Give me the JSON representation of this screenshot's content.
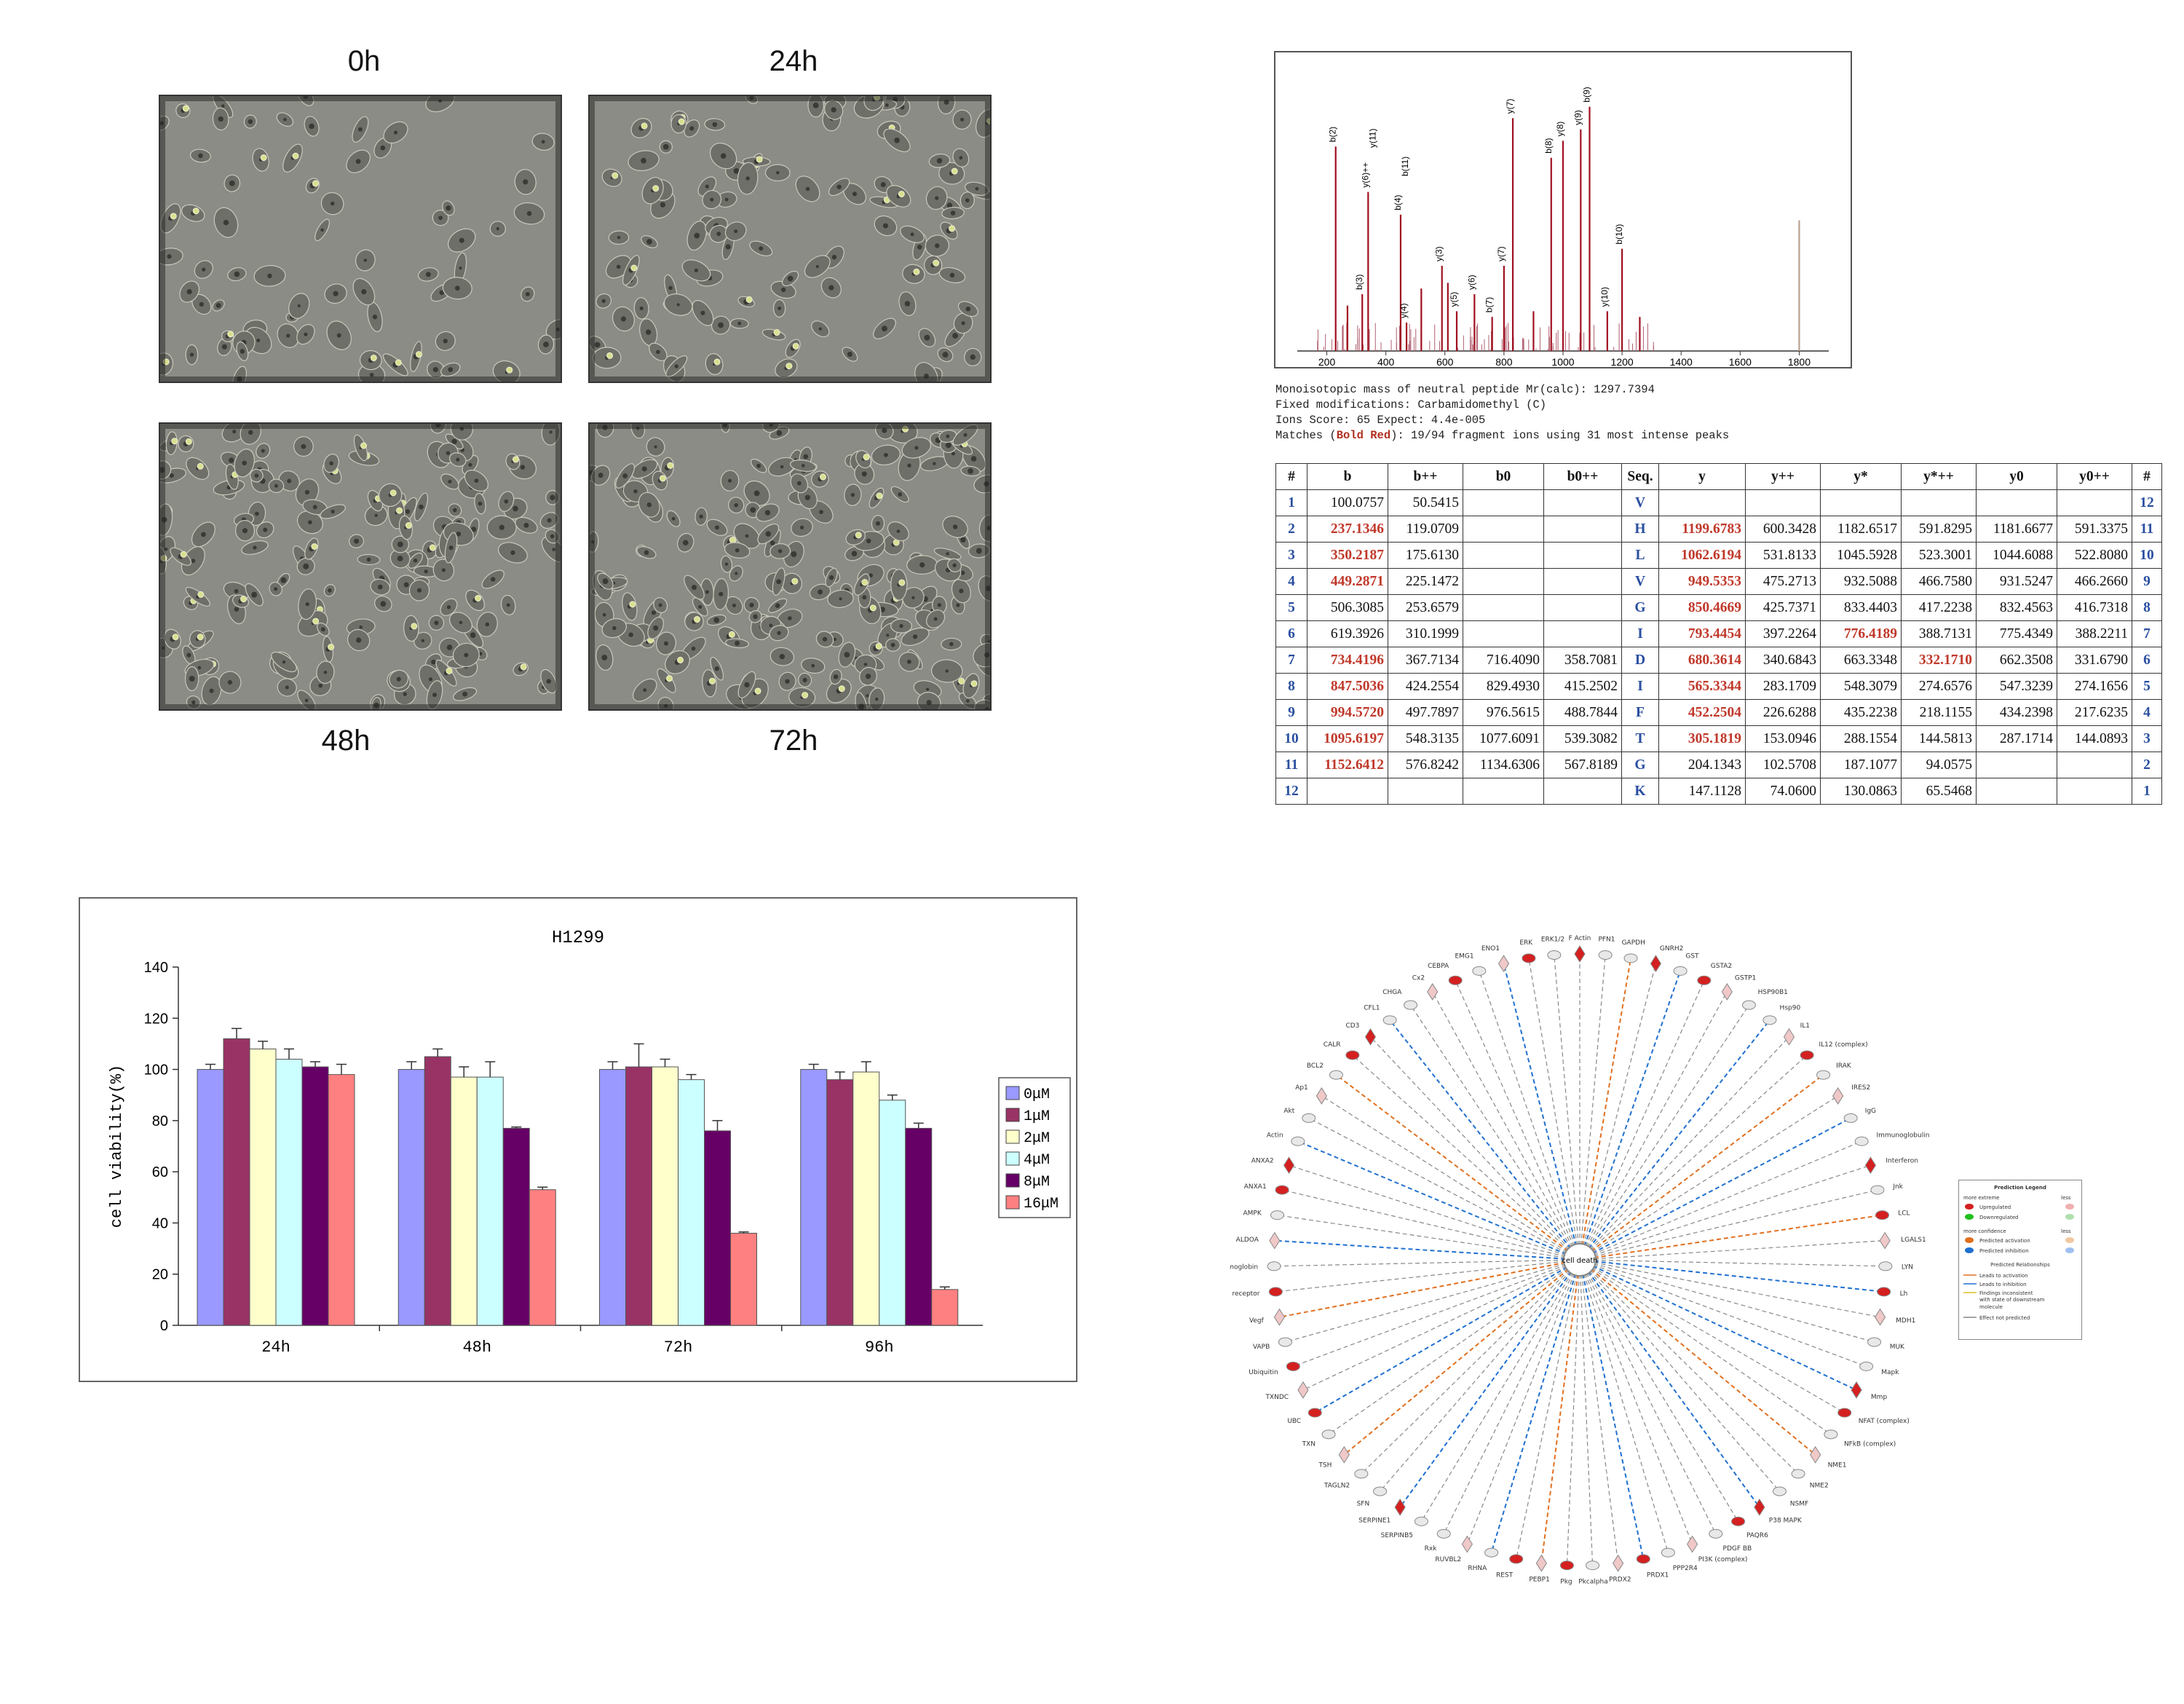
{
  "micrographs": {
    "labels": [
      "0h",
      "24h",
      "48h",
      "72h"
    ]
  },
  "spectrum": {
    "x_ticks": [
      "200",
      "400",
      "600",
      "800",
      "1000",
      "1200",
      "1400",
      "1600",
      "1800"
    ],
    "peak_labels": [
      "b(2)",
      "b(3)",
      "y(6)++",
      "b(4)",
      "y(4)",
      "y(3)",
      "y(5)",
      "y(6)",
      "b(7)",
      "y(7)",
      "y(7)",
      "b(8)",
      "y(8)",
      "y(9)",
      "b(9)",
      "y(10)",
      "b(10)",
      "y(11)",
      "b(11)"
    ]
  },
  "ms_info": {
    "line1": "Monoisotopic mass of neutral peptide Mr(calc): 1297.7394",
    "line2": "Fixed modifications: Carbamidomethyl (C)",
    "line3": "Ions Score: 65  Expect: 4.4e-005",
    "line4_prefix": "Matches (",
    "line4_red": "Bold Red",
    "line4_suffix": "): 19/94 fragment ions using 31 most intense peaks"
  },
  "fragment_table": {
    "headers": [
      "#",
      "b",
      "b++",
      "b0",
      "b0++",
      "Seq.",
      "y",
      "y++",
      "y*",
      "y*++",
      "y0",
      "y0++",
      "#"
    ],
    "rows": [
      {
        "i": "1",
        "b": "100.0757",
        "b2": "50.5415",
        "b0": "",
        "b02": "",
        "seq": "V",
        "y": "",
        "y2": "",
        "ys": "",
        "ys2": "",
        "y0": "",
        "y02": "",
        "j": "12",
        "hb": false,
        "hy": false,
        "hys": false,
        "hys2": false
      },
      {
        "i": "2",
        "b": "237.1346",
        "b2": "119.0709",
        "b0": "",
        "b02": "",
        "seq": "H",
        "y": "1199.6783",
        "y2": "600.3428",
        "ys": "1182.6517",
        "ys2": "591.8295",
        "y0": "1181.6677",
        "y02": "591.3375",
        "j": "11",
        "hb": true,
        "hy": true,
        "hys": false,
        "hys2": false
      },
      {
        "i": "3",
        "b": "350.2187",
        "b2": "175.6130",
        "b0": "",
        "b02": "",
        "seq": "L",
        "y": "1062.6194",
        "y2": "531.8133",
        "ys": "1045.5928",
        "ys2": "523.3001",
        "y0": "1044.6088",
        "y02": "522.8080",
        "j": "10",
        "hb": true,
        "hy": true,
        "hys": false,
        "hys2": false
      },
      {
        "i": "4",
        "b": "449.2871",
        "b2": "225.1472",
        "b0": "",
        "b02": "",
        "seq": "V",
        "y": "949.5353",
        "y2": "475.2713",
        "ys": "932.5088",
        "ys2": "466.7580",
        "y0": "931.5247",
        "y02": "466.2660",
        "j": "9",
        "hb": true,
        "hy": true,
        "hys": false,
        "hys2": false
      },
      {
        "i": "5",
        "b": "506.3085",
        "b2": "253.6579",
        "b0": "",
        "b02": "",
        "seq": "G",
        "y": "850.4669",
        "y2": "425.7371",
        "ys": "833.4403",
        "ys2": "417.2238",
        "y0": "832.4563",
        "y02": "416.7318",
        "j": "8",
        "hb": false,
        "hy": true,
        "hys": false,
        "hys2": false
      },
      {
        "i": "6",
        "b": "619.3926",
        "b2": "310.1999",
        "b0": "",
        "b02": "",
        "seq": "I",
        "y": "793.4454",
        "y2": "397.2264",
        "ys": "776.4189",
        "ys2": "388.7131",
        "y0": "775.4349",
        "y02": "388.2211",
        "j": "7",
        "hb": false,
        "hy": true,
        "hys": true,
        "hys2": false
      },
      {
        "i": "7",
        "b": "734.4196",
        "b2": "367.7134",
        "b0": "716.4090",
        "b02": "358.7081",
        "seq": "D",
        "y": "680.3614",
        "y2": "340.6843",
        "ys": "663.3348",
        "ys2": "332.1710",
        "y0": "662.3508",
        "y02": "331.6790",
        "j": "6",
        "hb": true,
        "hy": true,
        "hys": false,
        "hys2": true
      },
      {
        "i": "8",
        "b": "847.5036",
        "b2": "424.2554",
        "b0": "829.4930",
        "b02": "415.2502",
        "seq": "I",
        "y": "565.3344",
        "y2": "283.1709",
        "ys": "548.3079",
        "ys2": "274.6576",
        "y0": "547.3239",
        "y02": "274.1656",
        "j": "5",
        "hb": true,
        "hy": true,
        "hys": false,
        "hys2": false
      },
      {
        "i": "9",
        "b": "994.5720",
        "b2": "497.7897",
        "b0": "976.5615",
        "b02": "488.7844",
        "seq": "F",
        "y": "452.2504",
        "y2": "226.6288",
        "ys": "435.2238",
        "ys2": "218.1155",
        "y0": "434.2398",
        "y02": "217.6235",
        "j": "4",
        "hb": true,
        "hy": true,
        "hys": false,
        "hys2": false
      },
      {
        "i": "10",
        "b": "1095.6197",
        "b2": "548.3135",
        "b0": "1077.6091",
        "b02": "539.3082",
        "seq": "T",
        "y": "305.1819",
        "y2": "153.0946",
        "ys": "288.1554",
        "ys2": "144.5813",
        "y0": "287.1714",
        "y02": "144.0893",
        "j": "3",
        "hb": true,
        "hy": true,
        "hys": false,
        "hys2": false
      },
      {
        "i": "11",
        "b": "1152.6412",
        "b2": "576.8242",
        "b0": "1134.6306",
        "b02": "567.8189",
        "seq": "G",
        "y": "204.1343",
        "y2": "102.5708",
        "ys": "187.1077",
        "ys2": "94.0575",
        "y0": "",
        "y02": "",
        "j": "2",
        "hb": true,
        "hy": false,
        "hys": false,
        "hys2": false
      },
      {
        "i": "12",
        "b": "",
        "b2": "",
        "b0": "",
        "b02": "",
        "seq": "K",
        "y": "147.1128",
        "y2": "74.0600",
        "ys": "130.0863",
        "ys2": "65.5468",
        "y0": "",
        "y02": "",
        "j": "1",
        "hb": false,
        "hy": false,
        "hys": false,
        "hys2": false
      }
    ]
  },
  "chart_data": {
    "type": "bar",
    "title": "H1299",
    "xlabel": "",
    "ylabel": "cell viability(%)",
    "ylim": [
      0,
      140
    ],
    "yticks": [
      0,
      20,
      40,
      60,
      80,
      100,
      120,
      140
    ],
    "categories": [
      "24h",
      "48h",
      "72h",
      "96h"
    ],
    "series": [
      {
        "name": "0μM",
        "color": "#9999ff",
        "values": [
          100,
          100,
          100,
          100
        ],
        "err": [
          2,
          3,
          3,
          2
        ]
      },
      {
        "name": "1μM",
        "color": "#993366",
        "values": [
          112,
          105,
          101,
          96
        ],
        "err": [
          4,
          3,
          9,
          3
        ]
      },
      {
        "name": "2μM",
        "color": "#ffffcc",
        "values": [
          108,
          97,
          101,
          99
        ],
        "err": [
          3,
          4,
          3,
          4
        ]
      },
      {
        "name": "4μM",
        "color": "#ccffff",
        "values": [
          104,
          97,
          96,
          88
        ],
        "err": [
          4,
          6,
          2,
          2
        ]
      },
      {
        "name": "8μM",
        "color": "#660066",
        "values": [
          101,
          77,
          76,
          77
        ],
        "err": [
          2,
          0.5,
          4,
          2
        ]
      },
      {
        "name": "16μM",
        "color": "#ff8080",
        "values": [
          98,
          53,
          36,
          14
        ],
        "err": [
          4,
          1,
          0.5,
          1
        ]
      }
    ],
    "legend_position": "right",
    "grid": false
  },
  "network": {
    "center_label": "cell death",
    "nodes": [
      "F Actin",
      "PFN1",
      "GAPDH",
      "GNRH2",
      "GST",
      "GSTA2",
      "GSTP1",
      "HSP90B1",
      "Hsp90",
      "IL1",
      "IL12 (complex)",
      "IRAK",
      "IRES2",
      "IgG",
      "Immunoglobulin",
      "Interferon",
      "Jnk",
      "LCL",
      "LGALS1",
      "LYN",
      "Lh",
      "MDH1",
      "MUK",
      "Mapk",
      "Mmp",
      "NFAT (complex)",
      "NFkB (complex)",
      "NME1",
      "NME2",
      "NSMF",
      "P38 MAPK",
      "PAQR6",
      "PDGF BB",
      "PI3K (complex)",
      "PPP2R4",
      "PRDX1",
      "PRDX2",
      "Pkcalpha",
      "Pkg",
      "PEBP1",
      "REST",
      "RHNA",
      "RUVBL2",
      "Rxk",
      "SERPINB5",
      "SERPINE1",
      "SFN",
      "TAGLN2",
      "TSH",
      "TXN",
      "UBC",
      "TXNDC",
      "Ubiquitin",
      "VAPB",
      "Vegf",
      "estrogen receptor",
      "hemoglobin",
      "ALDOA",
      "AMPK",
      "ANXA1",
      "ANXA2",
      "Actin",
      "Akt",
      "Ap1",
      "BCL2",
      "CALR",
      "CD3",
      "CFL1",
      "CHGA",
      "Cx2",
      "CEBPA",
      "EMG1",
      "ENO1",
      "ERK",
      "ERK1/2"
    ],
    "legend": {
      "title": "Prediction Legend",
      "more_extreme": "more extreme",
      "less": "less",
      "upregulated": "Upregulated",
      "downregulated": "Downregulated",
      "more_confidence": "more confidence",
      "predicted_activation": "Predicted activation",
      "predicted_inhibition": "Predicted inhibition",
      "relationships_title": "Predicted Relationships",
      "leads_activation": "Leads to activation",
      "leads_inhibition": "Leads to inhibition",
      "findings_inconsistent": "Findings inconsistent",
      "with_state": "with state of downstream",
      "molecule": "molecule",
      "effect_not_predicted": "Effect not predicted"
    }
  },
  "colors": {
    "spectrum_peak": "#a01020",
    "highlight_red": "#c0392b",
    "index_blue": "#2a4fa0",
    "activation_orange": "#e07020",
    "inhibition_blue": "#2070d0",
    "neutral_gray": "#888888",
    "node_red": "#d42020"
  }
}
